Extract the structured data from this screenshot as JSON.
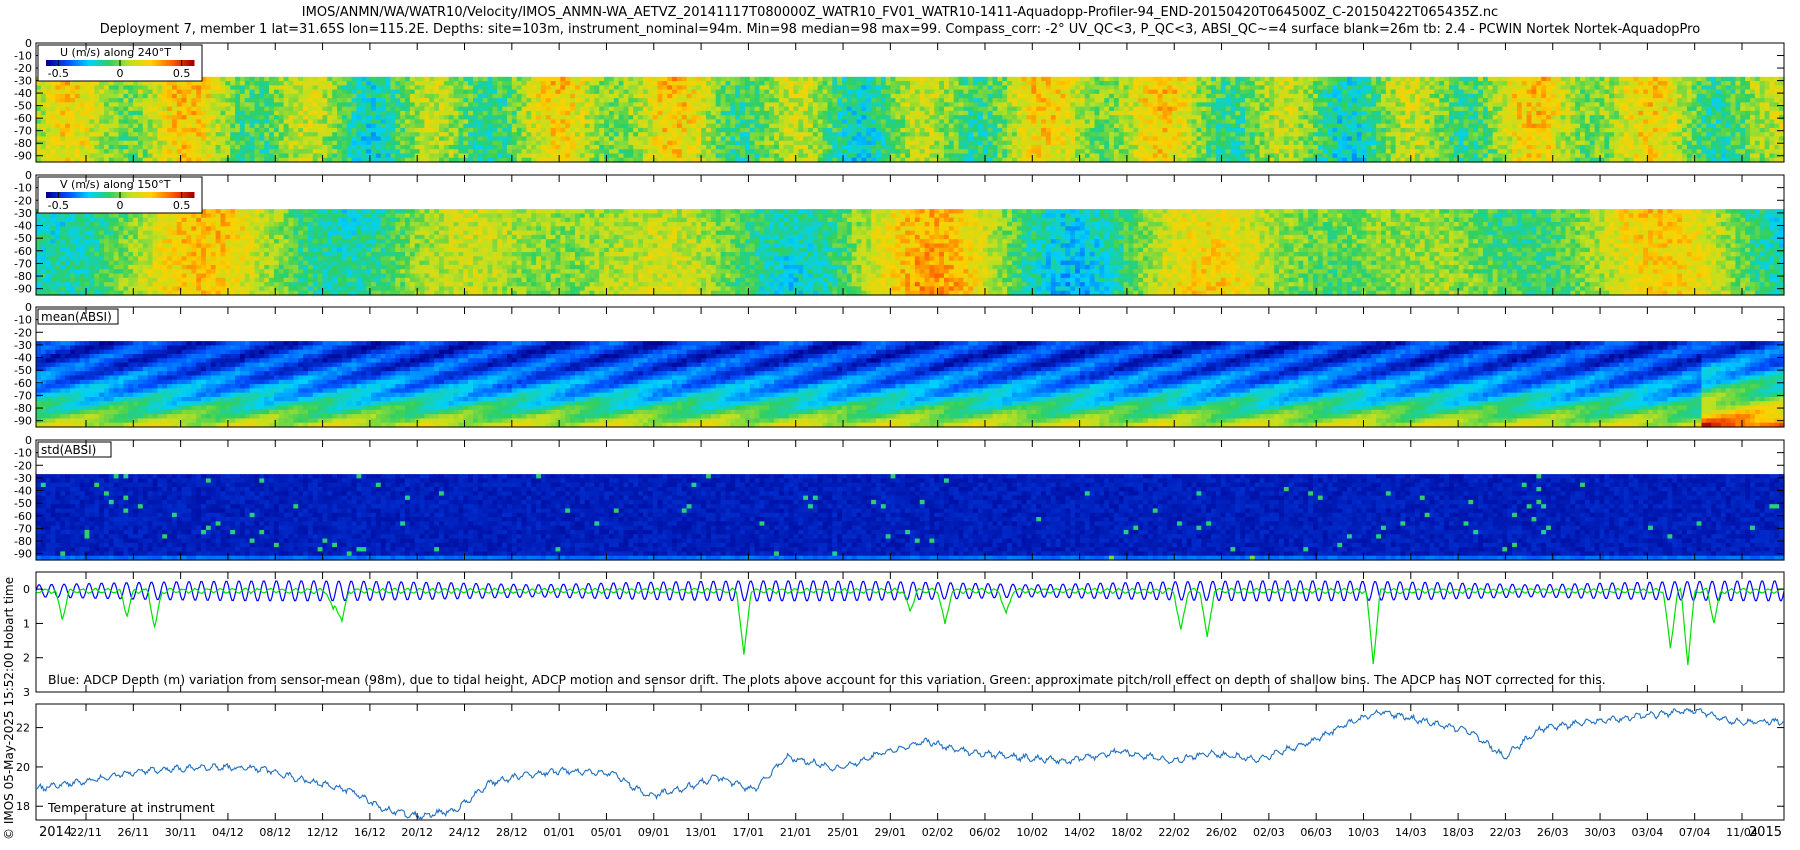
{
  "title_line1": "IMOS/ANMN/WA/WATR10/Velocity/IMOS_ANMN-WA_AETVZ_20141117T080000Z_WATR10_FV01_WATR10-1411-Aquadopp-Profiler-94_END-20150420T064500Z_C-20150422T065435Z.nc",
  "title_line2": "Deployment 7, member 1 lat=31.65S lon=115.2E. Depths: site=103m, instrument_nominal=94m. Min=98 median=98 max=99. Compass_corr: -2° UV_QC<3, P_QC<3, ABSI_QC~=4 surface blank=26m tb: 2.4 - PCWIN Nortek Nortek-AquadopPro",
  "credit": "© IMOS 05-May-2025 15:52:00 Hobart time",
  "chart_data": [
    {
      "type": "heatmap",
      "title": "U (m/s) along 240°T",
      "colorbar_ticks": [
        "-0.5",
        "0",
        "0.5"
      ],
      "colormap": [
        "#00008f",
        "#0050ff",
        "#00d0ff",
        "#30d060",
        "#c0e020",
        "#ffd000",
        "#ff6000",
        "#a00000"
      ],
      "yticks": [
        "0",
        "10",
        "20",
        "30",
        "40",
        "50",
        "60",
        "70",
        "80",
        "90"
      ],
      "blank_depth_top": 0,
      "blank_depth_bottom": 27,
      "value_range": [
        -0.6,
        0.6
      ]
    },
    {
      "type": "heatmap",
      "title": "V (m/s) along 150°T",
      "colorbar_ticks": [
        "-0.5",
        "0",
        "0.5"
      ],
      "colormap": [
        "#00008f",
        "#0050ff",
        "#00d0ff",
        "#30d060",
        "#c0e020",
        "#ffd000",
        "#ff6000",
        "#a00000"
      ],
      "yticks": [
        "0",
        "10",
        "20",
        "30",
        "40",
        "50",
        "60",
        "70",
        "80",
        "90"
      ],
      "blank_depth_top": 0,
      "blank_depth_bottom": 27,
      "value_range": [
        -0.6,
        0.6
      ]
    },
    {
      "type": "heatmap",
      "title": "mean(ABSI)",
      "yticks": [
        "0",
        "10",
        "20",
        "30",
        "40",
        "50",
        "60",
        "70",
        "80",
        "90"
      ],
      "blank_depth_top": 0,
      "blank_depth_bottom": 27
    },
    {
      "type": "heatmap",
      "title": "std(ABSI)",
      "yticks": [
        "0",
        "10",
        "20",
        "30",
        "40",
        "50",
        "60",
        "70",
        "80",
        "90"
      ],
      "blank_depth_top": 0,
      "blank_depth_bottom": 27
    },
    {
      "type": "line",
      "annotation": "Blue: ADCP Depth (m) variation from sensor-mean (98m), due to tidal height, ADCP motion and sensor drift. The plots above account for this variation. Green: approximate pitch/roll effect on depth of shallow bins. The ADCP has NOT corrected for this.",
      "yticks": [
        "0",
        "1",
        "2",
        "3"
      ],
      "ylim": [
        -0.5,
        3.0
      ],
      "series": [
        {
          "color": "#0000ff",
          "tidal_amplitude": 0.3
        },
        {
          "color": "#00e000",
          "spikes": [
            {
              "t": 0.015,
              "v": 0.8
            },
            {
              "t": 0.052,
              "v": 0.7
            },
            {
              "t": 0.068,
              "v": 1.1
            },
            {
              "t": 0.17,
              "v": 0.6
            },
            {
              "t": 0.175,
              "v": 0.9
            },
            {
              "t": 0.405,
              "v": 1.9
            },
            {
              "t": 0.5,
              "v": 0.6
            },
            {
              "t": 0.52,
              "v": 1.0
            },
            {
              "t": 0.555,
              "v": 0.7
            },
            {
              "t": 0.655,
              "v": 1.2
            },
            {
              "t": 0.67,
              "v": 1.4
            },
            {
              "t": 0.765,
              "v": 2.1
            },
            {
              "t": 0.935,
              "v": 1.7
            },
            {
              "t": 0.945,
              "v": 2.1
            },
            {
              "t": 0.96,
              "v": 0.9
            }
          ]
        }
      ]
    },
    {
      "type": "line",
      "annotation": "Temperature at instrument",
      "yticks": [
        "18",
        "20",
        "22"
      ],
      "ylim": [
        17.3,
        23.2
      ],
      "color": "#1f6fbf",
      "trend": [
        {
          "t": 0.0,
          "v": 18.9
        },
        {
          "t": 0.03,
          "v": 19.3
        },
        {
          "t": 0.06,
          "v": 19.8
        },
        {
          "t": 0.1,
          "v": 20.0
        },
        {
          "t": 0.13,
          "v": 19.9
        },
        {
          "t": 0.15,
          "v": 19.4
        },
        {
          "t": 0.18,
          "v": 18.8
        },
        {
          "t": 0.2,
          "v": 17.8
        },
        {
          "t": 0.22,
          "v": 17.5
        },
        {
          "t": 0.24,
          "v": 17.8
        },
        {
          "t": 0.26,
          "v": 19.2
        },
        {
          "t": 0.28,
          "v": 19.6
        },
        {
          "t": 0.3,
          "v": 19.8
        },
        {
          "t": 0.33,
          "v": 19.7
        },
        {
          "t": 0.35,
          "v": 18.5
        },
        {
          "t": 0.37,
          "v": 18.9
        },
        {
          "t": 0.39,
          "v": 19.5
        },
        {
          "t": 0.41,
          "v": 18.8
        },
        {
          "t": 0.43,
          "v": 20.5
        },
        {
          "t": 0.46,
          "v": 19.9
        },
        {
          "t": 0.48,
          "v": 20.6
        },
        {
          "t": 0.51,
          "v": 21.3
        },
        {
          "t": 0.53,
          "v": 20.8
        },
        {
          "t": 0.56,
          "v": 20.5
        },
        {
          "t": 0.59,
          "v": 20.3
        },
        {
          "t": 0.62,
          "v": 20.8
        },
        {
          "t": 0.65,
          "v": 20.3
        },
        {
          "t": 0.67,
          "v": 20.7
        },
        {
          "t": 0.7,
          "v": 20.4
        },
        {
          "t": 0.73,
          "v": 21.3
        },
        {
          "t": 0.75,
          "v": 22.2
        },
        {
          "t": 0.77,
          "v": 22.8
        },
        {
          "t": 0.79,
          "v": 22.4
        },
        {
          "t": 0.82,
          "v": 21.8
        },
        {
          "t": 0.84,
          "v": 20.5
        },
        {
          "t": 0.86,
          "v": 21.9
        },
        {
          "t": 0.89,
          "v": 22.3
        },
        {
          "t": 0.92,
          "v": 22.6
        },
        {
          "t": 0.95,
          "v": 22.9
        },
        {
          "t": 0.97,
          "v": 22.3
        },
        {
          "t": 1.0,
          "v": 22.3
        }
      ]
    }
  ],
  "x_axis": {
    "year_start": "2014",
    "year_end": "2015",
    "ticks": [
      "22/11",
      "26/11",
      "30/11",
      "04/12",
      "08/12",
      "12/12",
      "16/12",
      "20/12",
      "24/12",
      "28/12",
      "01/01",
      "05/01",
      "09/01",
      "13/01",
      "17/01",
      "21/01",
      "25/01",
      "29/01",
      "02/02",
      "06/02",
      "10/02",
      "14/02",
      "18/02",
      "22/02",
      "26/02",
      "02/03",
      "06/03",
      "10/03",
      "14/03",
      "18/03",
      "22/03",
      "26/03",
      "30/03",
      "03/04",
      "07/04",
      "11/04"
    ]
  }
}
